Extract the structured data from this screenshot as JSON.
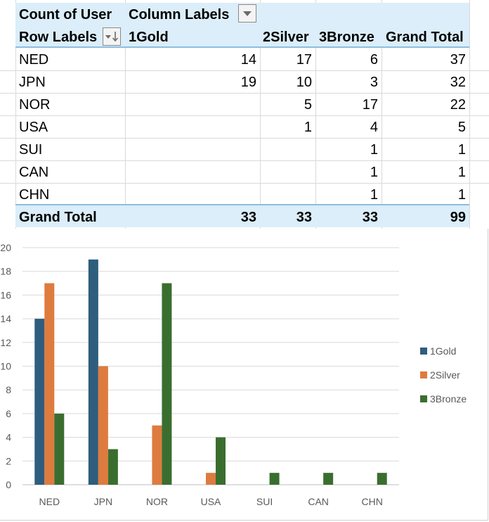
{
  "pivot": {
    "corner_label": "Count of User",
    "column_labels": "Column Labels",
    "row_labels": "Row Labels",
    "columns": [
      "1Gold",
      "2Silver",
      "3Bronze",
      "Grand Total"
    ],
    "rows": [
      {
        "label": "NED",
        "values": [
          "14",
          "17",
          "6",
          "37"
        ]
      },
      {
        "label": "JPN",
        "values": [
          "19",
          "10",
          "3",
          "32"
        ]
      },
      {
        "label": "NOR",
        "values": [
          "",
          "5",
          "17",
          "22"
        ]
      },
      {
        "label": "USA",
        "values": [
          "",
          "1",
          "4",
          "5"
        ]
      },
      {
        "label": "SUI",
        "values": [
          "",
          "",
          "1",
          "1"
        ]
      },
      {
        "label": "CAN",
        "values": [
          "",
          "",
          "1",
          "1"
        ]
      },
      {
        "label": "CHN",
        "values": [
          "",
          "",
          "1",
          "1"
        ]
      }
    ],
    "grand_total": {
      "label": "Grand Total",
      "values": [
        "33",
        "33",
        "33",
        "99"
      ]
    }
  },
  "chart_data": {
    "type": "bar",
    "categories": [
      "NED",
      "JPN",
      "NOR",
      "USA",
      "SUI",
      "CAN",
      "CHN"
    ],
    "series": [
      {
        "name": "1Gold",
        "color": "#2e5d7e",
        "values": [
          14,
          19,
          0,
          0,
          0,
          0,
          0
        ]
      },
      {
        "name": "2Silver",
        "color": "#de7b3f",
        "values": [
          17,
          10,
          5,
          1,
          0,
          0,
          0
        ]
      },
      {
        "name": "3Bronze",
        "color": "#3a6e2f",
        "values": [
          6,
          3,
          17,
          4,
          1,
          1,
          1
        ]
      }
    ],
    "ylim": [
      0,
      20
    ],
    "yticks": [
      "0",
      "2",
      "4",
      "6",
      "8",
      "10",
      "12",
      "14",
      "16",
      "18",
      "20"
    ],
    "grid": true,
    "legend": "right"
  }
}
